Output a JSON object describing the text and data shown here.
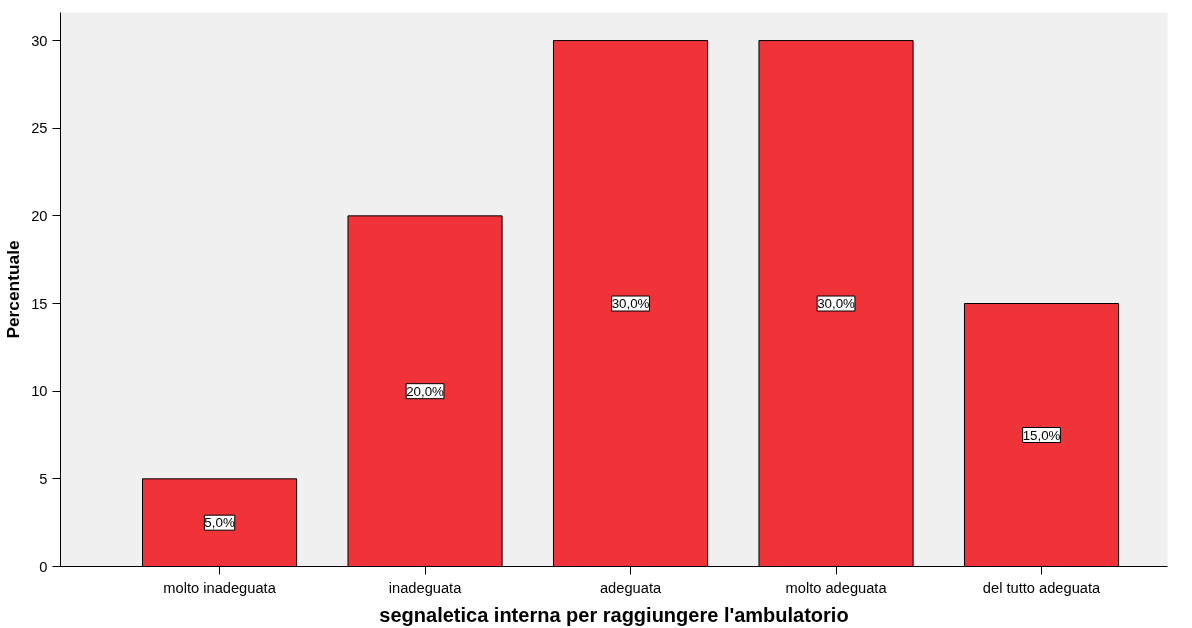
{
  "chart_data": {
    "type": "bar",
    "xlabel": "segnaletica interna per raggiungere l'ambulatorio",
    "ylabel": "Percentuale",
    "categories": [
      "molto inadeguata",
      "inadeguata",
      "adeguata",
      "molto adeguata",
      "del tutto adeguata"
    ],
    "values": [
      5,
      20,
      30,
      30,
      15
    ],
    "value_labels": [
      "5,0%",
      "20,0%",
      "30,0%",
      "30,0%",
      "15,0%"
    ],
    "color": "#ef3339",
    "ylim": [
      0,
      31.6
    ],
    "yticks": [
      0,
      5,
      10,
      15,
      20,
      25,
      30
    ],
    "grid": false
  }
}
